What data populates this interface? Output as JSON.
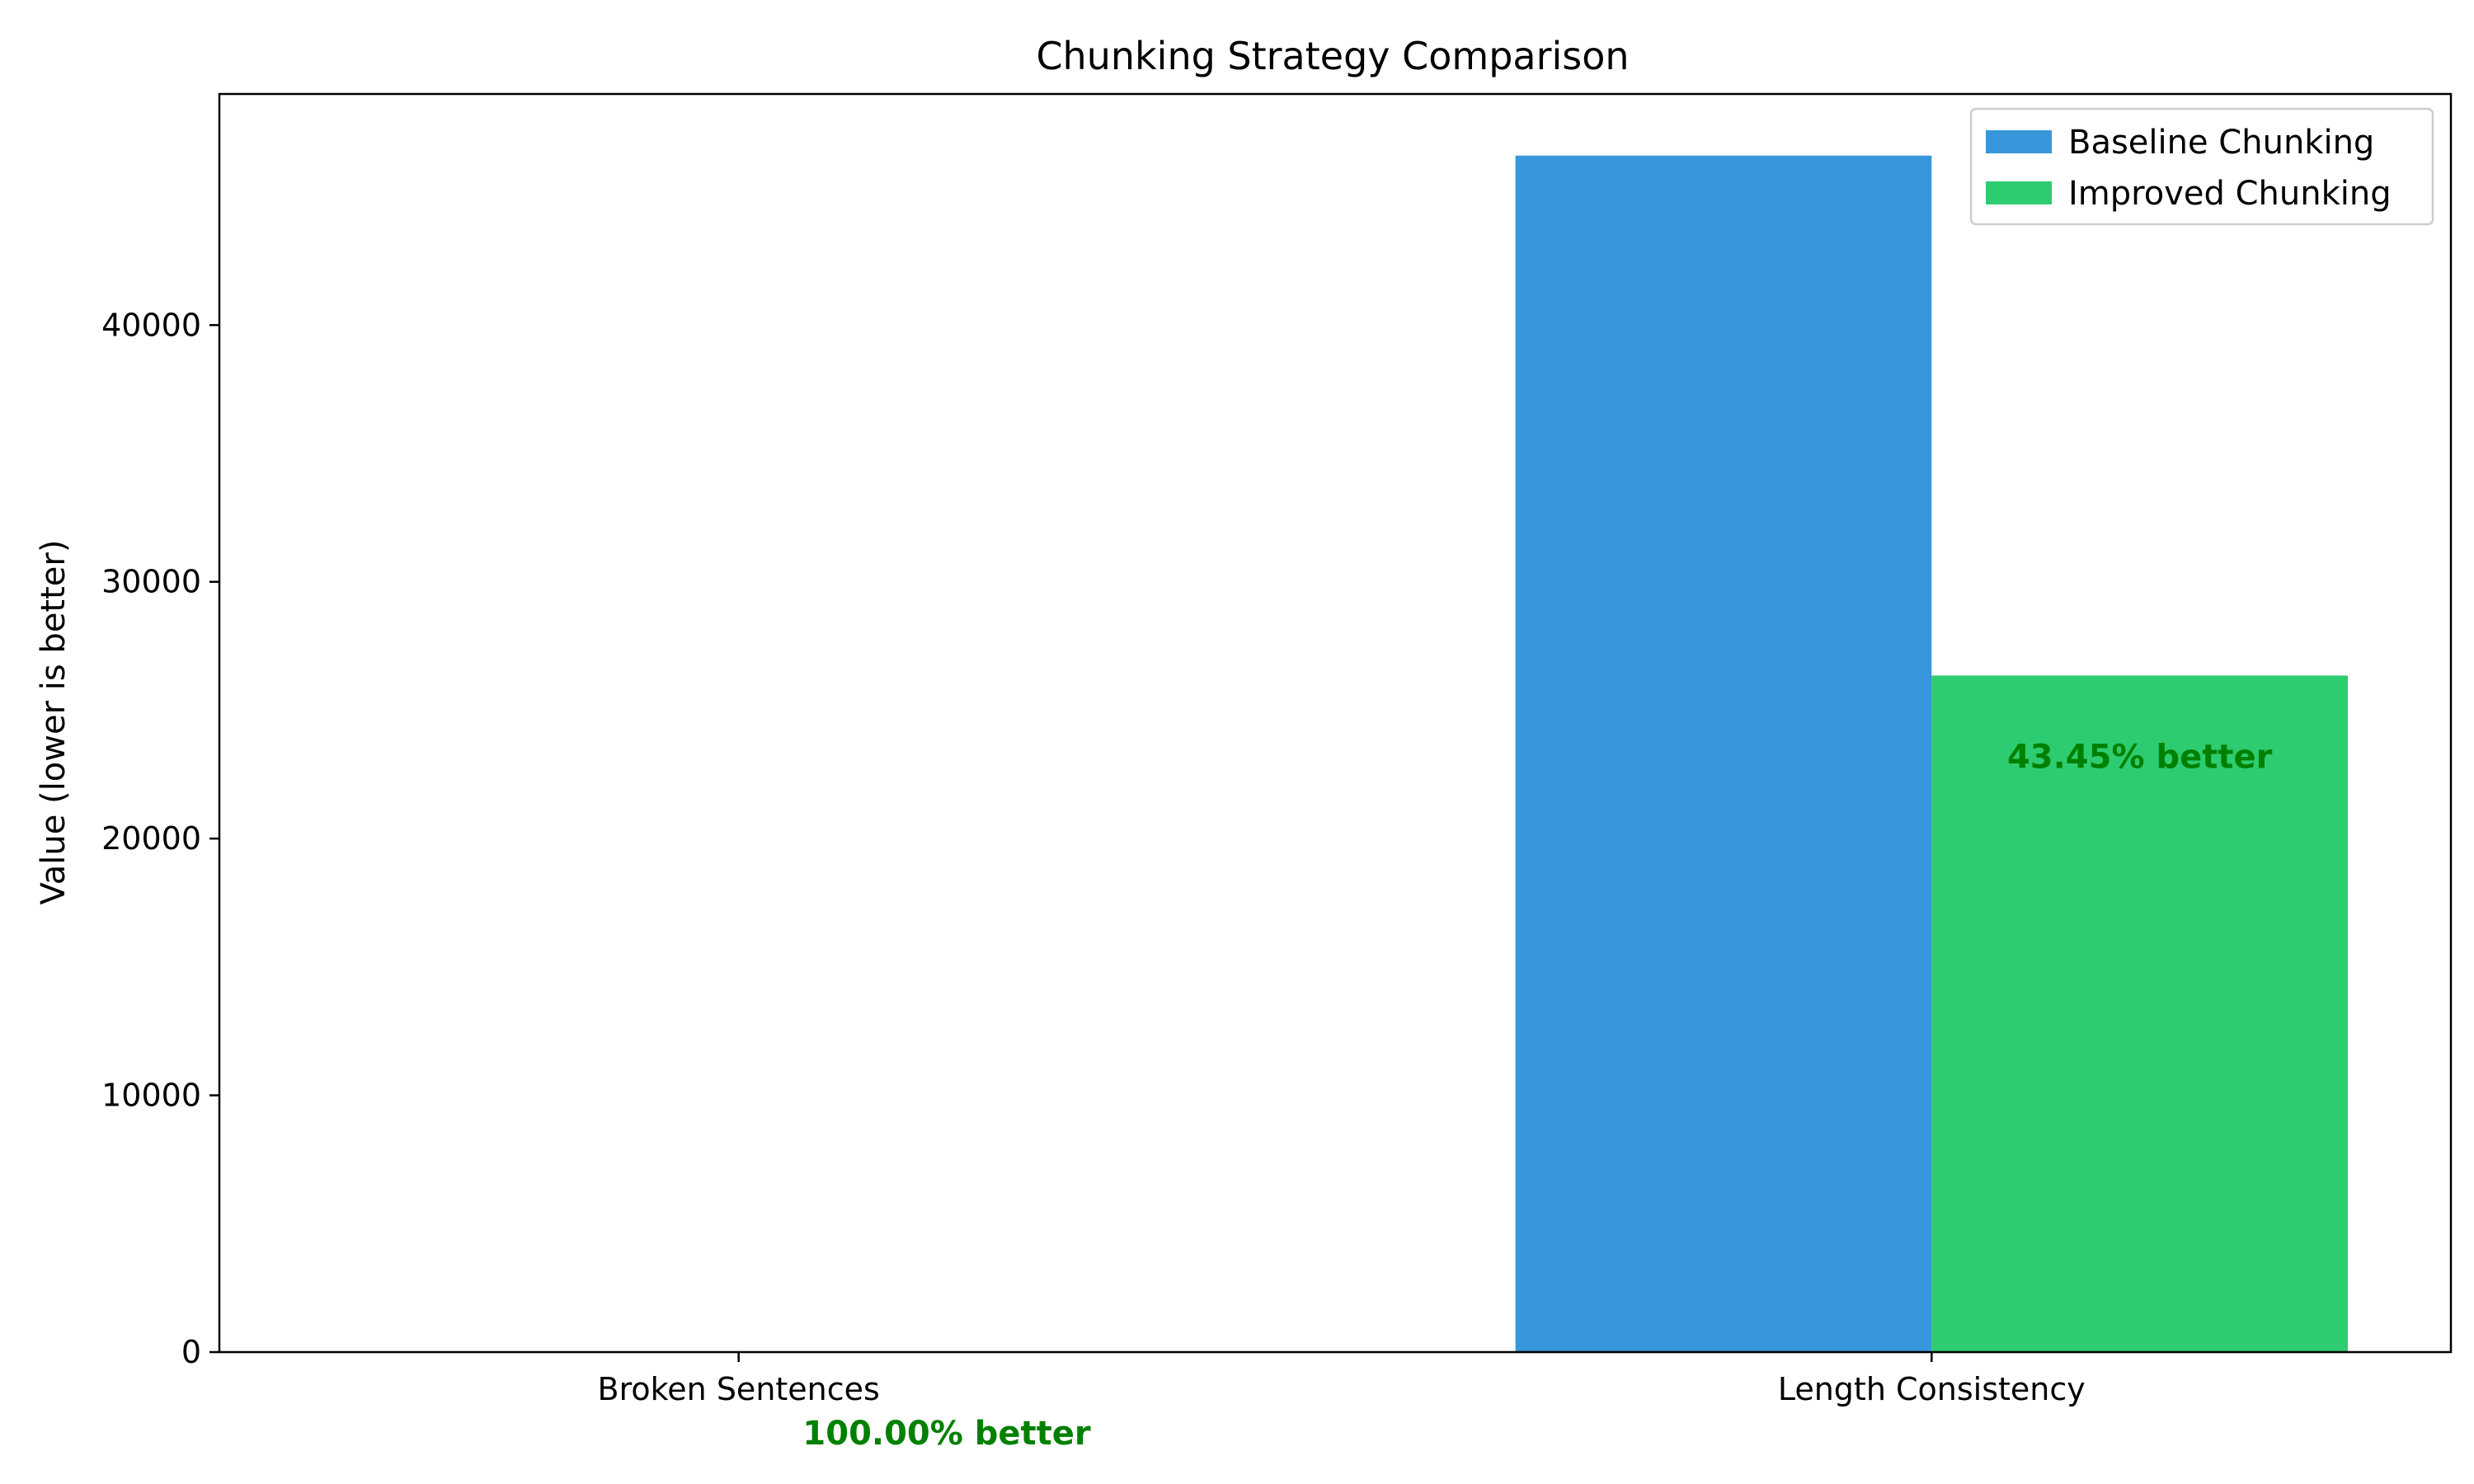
{
  "chart_data": {
    "type": "bar",
    "title": "Chunking Strategy Comparison",
    "xlabel": "",
    "ylabel": "Value (lower is better)",
    "categories": [
      "Broken Sentences",
      "Length Consistency"
    ],
    "series": [
      {
        "name": "Baseline Chunking",
        "values": [
          0,
          46600
        ],
        "color": "#3797da"
      },
      {
        "name": "Improved Chunking",
        "values": [
          0,
          26350
        ],
        "color": "#2ecc70"
      }
    ],
    "ylim": [
      0,
      49000
    ],
    "yticks": [
      0,
      10000,
      20000,
      30000,
      40000
    ],
    "ytick_labels": [
      "0",
      "10000",
      "20000",
      "30000",
      "40000"
    ],
    "annotations": [
      {
        "category": "Broken Sentences",
        "text": "100.00% better",
        "color": "#008000"
      },
      {
        "category": "Length Consistency",
        "text": "43.45% better",
        "color": "#008000"
      }
    ],
    "legend_position": "top-right",
    "grid": false
  }
}
